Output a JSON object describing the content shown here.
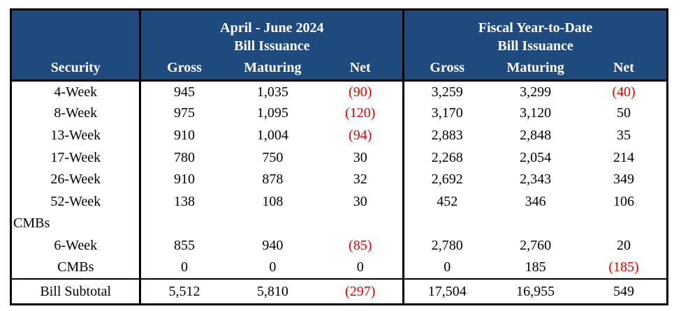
{
  "colors": {
    "header_bg": "#1f4a7d",
    "header_text": "#ffffff",
    "border": "#000000",
    "negative": "#e00000",
    "text": "#000000",
    "background": "#ffffff"
  },
  "table": {
    "security_header": "Security",
    "sections": [
      {
        "period": "April - June 2024",
        "subtitle": "Bill Issuance",
        "columns": [
          "Gross",
          "Maturing",
          "Net"
        ]
      },
      {
        "period": "Fiscal Year-to-Date",
        "subtitle": "Bill Issuance",
        "columns": [
          "Gross",
          "Maturing",
          "Net"
        ]
      }
    ],
    "rows": [
      {
        "security": "4-Week",
        "type": "item",
        "values": [
          "945",
          "1,035",
          "(90)",
          "3,259",
          "3,299",
          "(40)"
        ]
      },
      {
        "security": "8-Week",
        "type": "item",
        "values": [
          "975",
          "1,095",
          "(120)",
          "3,170",
          "3,120",
          "50"
        ]
      },
      {
        "security": "13-Week",
        "type": "item",
        "values": [
          "910",
          "1,004",
          "(94)",
          "2,883",
          "2,848",
          "35"
        ]
      },
      {
        "security": "17-Week",
        "type": "item",
        "values": [
          "780",
          "750",
          "30",
          "2,268",
          "2,054",
          "214"
        ]
      },
      {
        "security": "26-Week",
        "type": "item",
        "values": [
          "910",
          "878",
          "32",
          "2,692",
          "2,343",
          "349"
        ]
      },
      {
        "security": "52-Week",
        "type": "item",
        "values": [
          "138",
          "108",
          "30",
          "452",
          "346",
          "106"
        ]
      },
      {
        "security": "CMBs",
        "type": "group",
        "values": [
          "",
          "",
          "",
          "",
          "",
          ""
        ]
      },
      {
        "security": "6-Week",
        "type": "item",
        "values": [
          "855",
          "940",
          "(85)",
          "2,780",
          "2,760",
          "20"
        ]
      },
      {
        "security": "CMBs",
        "type": "item",
        "values": [
          "0",
          "0",
          "0",
          "0",
          "185",
          "(185)"
        ]
      },
      {
        "security": "Bill Subtotal",
        "type": "subtotal",
        "values": [
          "5,512",
          "5,810",
          "(297)",
          "17,504",
          "16,955",
          "549"
        ]
      }
    ]
  }
}
